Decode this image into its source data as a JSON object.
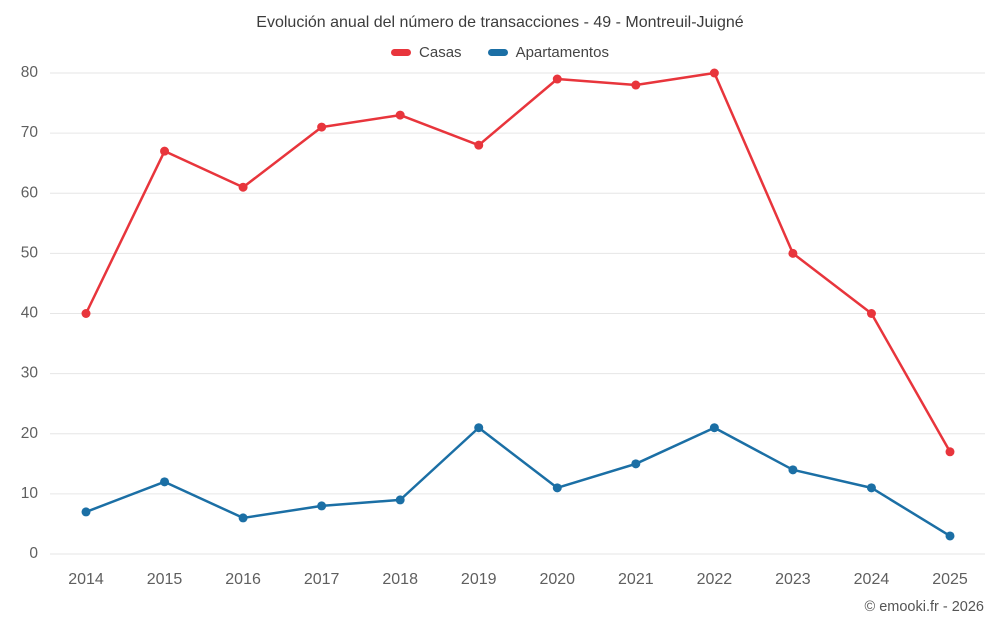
{
  "header": {
    "title": "Evolución anual del número de transacciones - 49 - Montreuil-Juigné"
  },
  "legend": {
    "items": [
      {
        "label": "Casas",
        "color": "#e8353c"
      },
      {
        "label": "Apartamentos",
        "color": "#1b6fa5"
      }
    ]
  },
  "footer": {
    "attribution": "© emooki.fr - 2026"
  },
  "chart_data": {
    "type": "line",
    "title": "Evolución anual del número de transacciones - 49 - Montreuil-Juigné",
    "x": [
      2014,
      2015,
      2016,
      2017,
      2018,
      2019,
      2020,
      2021,
      2022,
      2023,
      2024,
      2025
    ],
    "series": [
      {
        "name": "Casas",
        "color": "#e8353c",
        "values": [
          40,
          67,
          61,
          71,
          73,
          68,
          79,
          78,
          80,
          50,
          40,
          17
        ]
      },
      {
        "name": "Apartamentos",
        "color": "#1b6fa5",
        "values": [
          7,
          12,
          6,
          8,
          9,
          21,
          11,
          15,
          21,
          14,
          11,
          3
        ]
      }
    ],
    "xlabel": "",
    "ylabel": "",
    "ylim": [
      0,
      80
    ],
    "ytick_step": 10,
    "grid": true,
    "legend_position": "top",
    "grid_color": "#e6e6e6",
    "tick_label_color": "#5f5f5f"
  }
}
